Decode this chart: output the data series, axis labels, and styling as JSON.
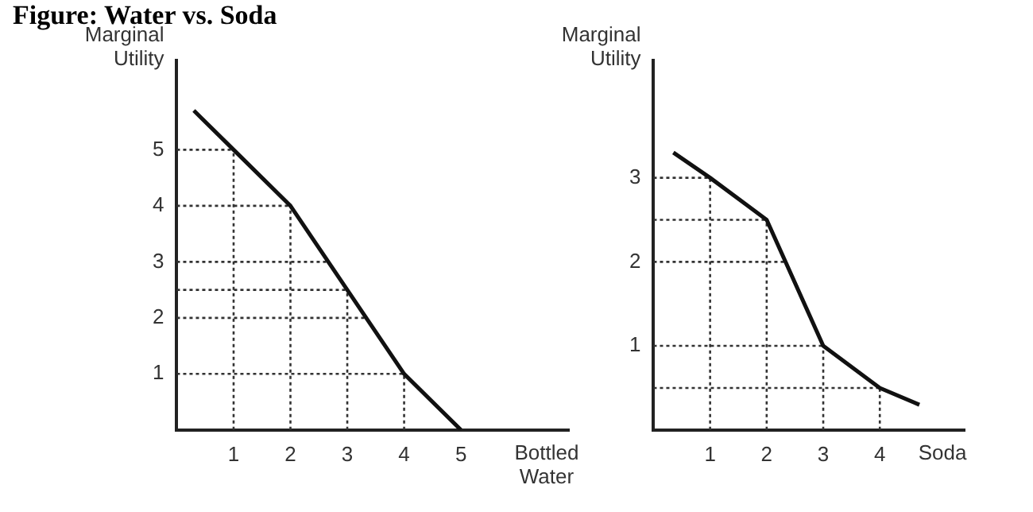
{
  "chart_data": [
    {
      "type": "line",
      "title": "Figure: Water vs. Soda",
      "xlabel": "Bottled Water",
      "ylabel": "Marginal Utility",
      "x": [
        0.3,
        1,
        2,
        3,
        4,
        5
      ],
      "series": [
        {
          "color": "#111111",
          "values": [
            5.7,
            5,
            4,
            2.5,
            1,
            0
          ]
        },
        {
          "color": "#333333",
          "line_style": "dotted",
          "x": [
            0,
            1
          ],
          "values": [
            5,
            5
          ]
        },
        {
          "color": "#333333",
          "line_style": "dotted",
          "x": [
            0,
            2
          ],
          "values": [
            4,
            4
          ]
        },
        {
          "color": "#333333",
          "line_style": "dotted",
          "x": [
            0,
            2.67
          ],
          "values": [
            3,
            3
          ]
        },
        {
          "color": "#333333",
          "line_style": "dotted",
          "x": [
            0,
            3
          ],
          "values": [
            2.5,
            2.5
          ]
        },
        {
          "color": "#333333",
          "line_style": "dotted",
          "x": [
            0,
            3.33
          ],
          "values": [
            2,
            2
          ]
        },
        {
          "color": "#333333",
          "line_style": "dotted",
          "x": [
            0,
            4
          ],
          "values": [
            1,
            1
          ]
        },
        {
          "color": "#333333",
          "line_style": "dotted",
          "x": [
            1,
            1
          ],
          "values": [
            0,
            5
          ]
        },
        {
          "color": "#333333",
          "line_style": "dotted",
          "x": [
            2,
            2
          ],
          "values": [
            0,
            4
          ]
        },
        {
          "color": "#333333",
          "line_style": "dotted",
          "x": [
            3,
            3
          ],
          "values": [
            0,
            2.5
          ]
        },
        {
          "color": "#333333",
          "line_style": "dotted",
          "x": [
            4,
            4
          ],
          "values": [
            0,
            1
          ]
        }
      ],
      "xlim": [
        0,
        6.9
      ],
      "xticks": [
        1,
        2,
        3,
        4,
        5
      ],
      "ylim": [
        0,
        6.6
      ],
      "yticks": [
        1,
        2,
        3,
        4,
        5
      ],
      "marker": "none",
      "line_style": "solid"
    },
    {
      "type": "line",
      "xlabel": "Soda",
      "ylabel": "Marginal Utility",
      "x": [
        0.35,
        1,
        2,
        3,
        4,
        4.7
      ],
      "series": [
        {
          "color": "#111111",
          "values": [
            3.3,
            3,
            2.5,
            1,
            0.5,
            0.3
          ]
        },
        {
          "color": "#333333",
          "line_style": "dotted",
          "x": [
            0,
            1
          ],
          "values": [
            3,
            3
          ]
        },
        {
          "color": "#333333",
          "line_style": "dotted",
          "x": [
            0,
            2
          ],
          "values": [
            2.5,
            2.5
          ]
        },
        {
          "color": "#333333",
          "line_style": "dotted",
          "x": [
            0,
            2.33
          ],
          "values": [
            2,
            2
          ]
        },
        {
          "color": "#333333",
          "line_style": "dotted",
          "x": [
            0,
            3
          ],
          "values": [
            1,
            1
          ]
        },
        {
          "color": "#333333",
          "line_style": "dotted",
          "x": [
            0,
            4
          ],
          "values": [
            0.5,
            0.5
          ]
        },
        {
          "color": "#333333",
          "line_style": "dotted",
          "x": [
            1,
            1
          ],
          "values": [
            0,
            3
          ]
        },
        {
          "color": "#333333",
          "line_style": "dotted",
          "x": [
            2,
            2
          ],
          "values": [
            0,
            2.5
          ]
        },
        {
          "color": "#333333",
          "line_style": "dotted",
          "x": [
            3,
            3
          ],
          "values": [
            0,
            1
          ]
        },
        {
          "color": "#333333",
          "line_style": "dotted",
          "x": [
            4,
            4
          ],
          "values": [
            0,
            0.5
          ]
        }
      ],
      "xlim": [
        0,
        5.5
      ],
      "xticks": [
        1,
        2,
        3,
        4
      ],
      "ylim": [
        0,
        4.4
      ],
      "yticks": [
        1,
        2,
        3
      ],
      "marker": "none",
      "line_style": "solid"
    }
  ]
}
